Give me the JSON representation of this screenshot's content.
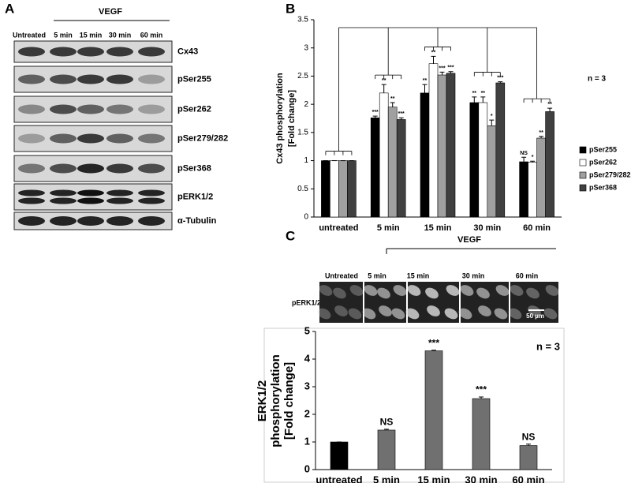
{
  "panel_labels": [
    "A",
    "B",
    "C"
  ],
  "panel_a": {
    "untreated": "Untreated",
    "group": "VEGF",
    "times": [
      "5 min",
      "15 min",
      "30 min",
      "60 min"
    ],
    "blots": [
      "Cx43",
      "pSer255",
      "pSer262",
      "pSer279/282",
      "pSer368",
      "pERK1/2",
      "α-Tubulin"
    ]
  },
  "panel_c": {
    "untreated": "Untreated",
    "group": "VEGF",
    "times": [
      "5 min",
      "15 min",
      "30 min",
      "60 min"
    ],
    "row_label": "pERK1/2",
    "scale_bar": "50 µm"
  },
  "chart_data": [
    {
      "type": "bar",
      "ylabel": [
        "Cx43 phosphorylation",
        "[Fold change]"
      ],
      "note": "n = 3",
      "categories": [
        "untreated",
        "5 min",
        "15 min",
        "30 min",
        "60 min"
      ],
      "ylim": [
        0,
        3.5
      ],
      "yticks": [
        0,
        0.5,
        1,
        1.5,
        2,
        2.5,
        3,
        3.5
      ],
      "series": [
        {
          "name": "pSer255",
          "color": "#000000",
          "values": [
            1,
            1.76,
            2.2,
            2.03,
            0.98
          ],
          "errors": [
            0,
            0.03,
            0.15,
            0.1,
            0.08
          ],
          "significance": [
            null,
            "***",
            "**",
            "**",
            "NS"
          ]
        },
        {
          "name": "pSer262",
          "color": "#ffffff",
          "values": [
            1,
            2.2,
            2.72,
            2.03,
            0.97
          ],
          "errors": [
            0,
            0.15,
            0.13,
            0.1,
            0.02
          ],
          "significance": [
            null,
            "**",
            "**",
            "**",
            "*"
          ]
        },
        {
          "name": "pSer279/282",
          "color": "#a0a0a0",
          "values": [
            1,
            1.95,
            2.52,
            1.62,
            1.4
          ],
          "errors": [
            0,
            0.08,
            0.05,
            0.1,
            0.03
          ],
          "significance": [
            null,
            "**",
            "***",
            "*",
            "**"
          ]
        },
        {
          "name": "pSer368",
          "color": "#404040",
          "values": [
            1,
            1.73,
            2.55,
            2.38,
            1.87
          ],
          "errors": [
            0,
            0.03,
            0.03,
            0.02,
            0.06
          ],
          "significance": [
            null,
            "***",
            "***",
            "***",
            "**"
          ]
        }
      ]
    },
    {
      "type": "bar",
      "ylabel": [
        "ERK1/2",
        "phosphorylation",
        "[Fold change]"
      ],
      "note": "n = 3",
      "categories": [
        "untreated",
        "5 min",
        "15 min",
        "30 min",
        "60 min"
      ],
      "values": [
        1,
        1.43,
        4.3,
        2.57,
        0.87
      ],
      "errors": [
        0,
        0.03,
        0.02,
        0.06,
        0.05
      ],
      "significance": [
        null,
        "NS",
        "***",
        "***",
        "NS"
      ],
      "colors": [
        "#000000",
        "#707070",
        "#707070",
        "#707070",
        "#707070"
      ],
      "ylim": [
        0,
        5
      ],
      "yticks": [
        0,
        1,
        2,
        3,
        4,
        5
      ]
    }
  ]
}
